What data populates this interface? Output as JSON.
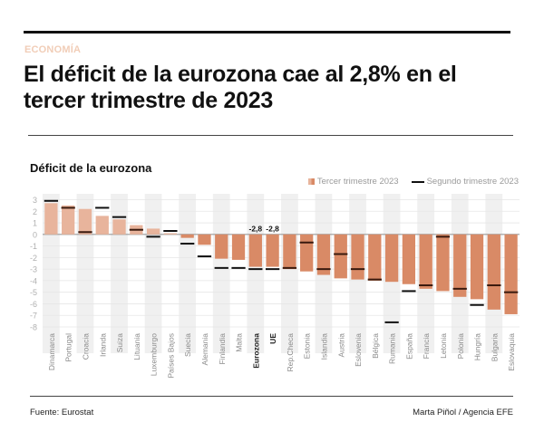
{
  "header": {
    "section": "ECONOMÍA",
    "headline": "El déficit de la eurozona cae al 2,8% en el tercer trimestre de 2023"
  },
  "footer": {
    "source": "Fuente: Eurostat",
    "credit": "Marta Piñol / Agencia EFE"
  },
  "colors": {
    "positive_bar": "#e8b49c",
    "negative_bar": "#d98a66",
    "marker": "#111111",
    "band": "#f0f0f0",
    "grid": "#e6e6e6",
    "axis_text": "#b0b0b0",
    "label_text": "#8a8a8a"
  },
  "chart_data": {
    "type": "bar",
    "title": "Déficit de la eurozona",
    "xlabel": "",
    "ylabel": "",
    "ylim": [
      -8,
      3
    ],
    "yticks": [
      3,
      2,
      1,
      0,
      -1,
      -2,
      -3,
      -4,
      -5,
      -6,
      -7,
      -8
    ],
    "grid": true,
    "legend_position": "top-right",
    "legend": [
      {
        "name": "Tercer trimestre 2023",
        "kind": "bar"
      },
      {
        "name": "Segundo trimestre 2023",
        "kind": "line"
      }
    ],
    "categories": [
      "Dinamarca",
      "Portugal",
      "Croacia",
      "Irlanda",
      "Suiza",
      "Lituania",
      "Luxemburgo",
      "Países Bajos",
      "Suecia",
      "Alemania",
      "Finlandia",
      "Malta",
      "Eurozona",
      "UE",
      "Rep.Checa",
      "Estonia",
      "Islandia",
      "Austria",
      "Eslovenia",
      "Bélgica",
      "Rumania",
      "España",
      "Francia",
      "Letonia",
      "Polonia",
      "Hungría",
      "Bulgaria",
      "Eslovaquia"
    ],
    "highlight_categories": [
      "Eurozona",
      "UE"
    ],
    "series": [
      {
        "name": "Tercer trimestre 2023",
        "kind": "bar",
        "values": [
          2.7,
          2.5,
          2.2,
          1.6,
          1.3,
          0.8,
          0.5,
          0.1,
          -0.3,
          -0.9,
          -2.1,
          -2.2,
          -2.8,
          -2.8,
          -3.0,
          -3.2,
          -3.5,
          -3.8,
          -3.9,
          -4.0,
          -4.1,
          -4.3,
          -4.7,
          -4.9,
          -5.4,
          -5.6,
          -6.5,
          -6.9
        ]
      },
      {
        "name": "Segundo trimestre 2023",
        "kind": "line",
        "values": [
          2.9,
          2.3,
          0.2,
          2.3,
          1.5,
          0.4,
          -0.2,
          0.3,
          -0.8,
          -1.9,
          -2.9,
          -2.9,
          -3.0,
          -3.0,
          -2.9,
          -0.7,
          -3.0,
          -1.7,
          -3.0,
          -3.9,
          -7.6,
          -4.9,
          -4.4,
          -0.2,
          -4.7,
          -6.1,
          -4.4,
          -5.0
        ]
      }
    ],
    "data_labels": [
      {
        "category": "Eurozona",
        "text": "-2,8"
      },
      {
        "category": "UE",
        "text": "-2,8"
      }
    ]
  }
}
